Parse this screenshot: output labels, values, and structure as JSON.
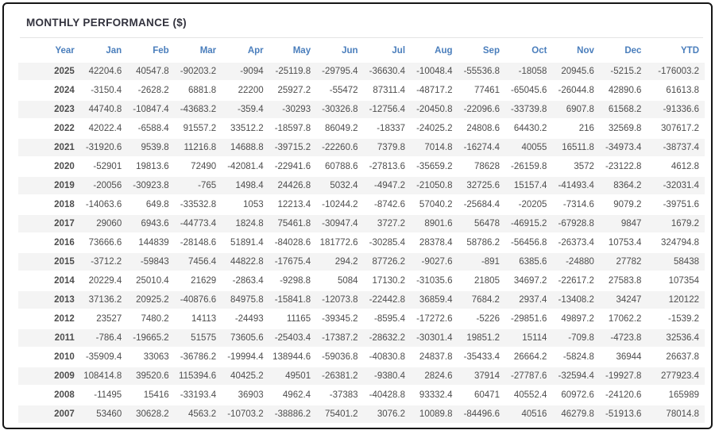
{
  "panel": {
    "title": "MONTHLY PERFORMANCE ($)"
  },
  "colors": {
    "header_text": "#4a7ebc",
    "positive_value": "#4d4d4d",
    "negative_value": "#f96b6b",
    "year_text": "#333333",
    "alt_row_bg": "#f4f4f4",
    "frame_border": "#161616",
    "title_text": "#33333e"
  },
  "chart_data": {
    "type": "table",
    "title": "MONTHLY PERFORMANCE ($)",
    "columns": [
      "Year",
      "Jan",
      "Feb",
      "Mar",
      "Apr",
      "May",
      "Jun",
      "Jul",
      "Aug",
      "Sep",
      "Oct",
      "Nov",
      "Dec",
      "YTD"
    ],
    "rows": [
      {
        "year": "2025",
        "values": [
          "42204.6",
          "40547.8",
          "-90203.2",
          "-9094",
          "-25119.8",
          "-29795.4",
          "-36630.4",
          "-10048.4",
          "-55536.8",
          "-18058",
          "20945.6",
          "-5215.2",
          "-176003.2"
        ]
      },
      {
        "year": "2024",
        "values": [
          "-3150.4",
          "-2628.2",
          "6881.8",
          "22200",
          "25927.2",
          "-55472",
          "87311.4",
          "-48717.2",
          "77461",
          "-65045.6",
          "-26044.8",
          "42890.6",
          "61613.8"
        ]
      },
      {
        "year": "2023",
        "values": [
          "44740.8",
          "-10847.4",
          "-43683.2",
          "-359.4",
          "-30293",
          "-30326.8",
          "-12756.4",
          "-20450.8",
          "-22096.6",
          "-33739.8",
          "6907.8",
          "61568.2",
          "-91336.6"
        ]
      },
      {
        "year": "2022",
        "values": [
          "42022.4",
          "-6588.4",
          "91557.2",
          "33512.2",
          "-18597.8",
          "86049.2",
          "-18337",
          "-24025.2",
          "24808.6",
          "64430.2",
          "216",
          "32569.8",
          "307617.2"
        ]
      },
      {
        "year": "2021",
        "values": [
          "-31920.6",
          "9539.8",
          "11216.8",
          "14688.8",
          "-39715.2",
          "-22260.6",
          "7379.8",
          "7014.8",
          "-16274.4",
          "40055",
          "16511.8",
          "-34973.4",
          "-38737.4"
        ]
      },
      {
        "year": "2020",
        "values": [
          "-52901",
          "19813.6",
          "72490",
          "-42081.4",
          "-22941.6",
          "60788.6",
          "-27813.6",
          "-35659.2",
          "78628",
          "-26159.8",
          "3572",
          "-23122.8",
          "4612.8"
        ]
      },
      {
        "year": "2019",
        "values": [
          "-20056",
          "-30923.8",
          "-765",
          "1498.4",
          "24426.8",
          "5032.4",
          "-4947.2",
          "-21050.8",
          "32725.6",
          "15157.4",
          "-41493.4",
          "8364.2",
          "-32031.4"
        ]
      },
      {
        "year": "2018",
        "values": [
          "-14063.6",
          "649.8",
          "-33532.8",
          "1053",
          "12213.4",
          "-10244.2",
          "-8742.6",
          "57040.2",
          "-25684.4",
          "-20205",
          "-7314.6",
          "9079.2",
          "-39751.6"
        ]
      },
      {
        "year": "2017",
        "values": [
          "29060",
          "6943.6",
          "-44773.4",
          "1824.8",
          "75461.8",
          "-30947.4",
          "3727.2",
          "8901.6",
          "56478",
          "-46915.2",
          "-67928.8",
          "9847",
          "1679.2"
        ]
      },
      {
        "year": "2016",
        "values": [
          "73666.6",
          "144839",
          "-28148.6",
          "51891.4",
          "-84028.6",
          "181772.6",
          "-30285.4",
          "28378.4",
          "58786.2",
          "-56456.8",
          "-26373.4",
          "10753.4",
          "324794.8"
        ]
      },
      {
        "year": "2015",
        "values": [
          "-3712.2",
          "-59843",
          "7456.4",
          "44822.8",
          "-17675.4",
          "294.2",
          "87726.2",
          "-9027.6",
          "-891",
          "6385.6",
          "-24880",
          "27782",
          "58438"
        ]
      },
      {
        "year": "2014",
        "values": [
          "20229.4",
          "25010.4",
          "21629",
          "-2863.4",
          "-9298.8",
          "5084",
          "17130.2",
          "-31035.6",
          "21805",
          "34697.2",
          "-22617.2",
          "27583.8",
          "107354"
        ]
      },
      {
        "year": "2013",
        "values": [
          "37136.2",
          "20925.2",
          "-40876.6",
          "84975.8",
          "-15841.8",
          "-12073.8",
          "-22442.8",
          "36859.4",
          "7684.2",
          "2937.4",
          "-13408.2",
          "34247",
          "120122"
        ]
      },
      {
        "year": "2012",
        "values": [
          "23527",
          "7480.2",
          "14113",
          "-24493",
          "11165",
          "-39345.2",
          "-8595.4",
          "-17272.6",
          "-5226",
          "-29851.6",
          "49897.2",
          "17062.2",
          "-1539.2"
        ]
      },
      {
        "year": "2011",
        "values": [
          "-786.4",
          "-19665.2",
          "51575",
          "73605.6",
          "-25403.4",
          "-17387.2",
          "-28632.2",
          "-30301.4",
          "19851.2",
          "15114",
          "-709.8",
          "-4723.8",
          "32536.4"
        ]
      },
      {
        "year": "2010",
        "values": [
          "-35909.4",
          "33063",
          "-36786.2",
          "-19994.4",
          "138944.6",
          "-59036.8",
          "-40830.8",
          "24837.8",
          "-35433.4",
          "26664.2",
          "-5824.8",
          "36944",
          "26637.8"
        ]
      },
      {
        "year": "2009",
        "values": [
          "108414.8",
          "39520.6",
          "115394.6",
          "40425.2",
          "49501",
          "-26381.2",
          "-9380.4",
          "2824.6",
          "37914",
          "-27787.6",
          "-32594.4",
          "-19927.8",
          "277923.4"
        ]
      },
      {
        "year": "2008",
        "values": [
          "-11495",
          "15416",
          "-33193.4",
          "36903",
          "4962.4",
          "-37383",
          "-40428.8",
          "93332.4",
          "60471",
          "40552.4",
          "60972.6",
          "-24120.6",
          "165989"
        ]
      },
      {
        "year": "2007",
        "values": [
          "53460",
          "30628.2",
          "4563.2",
          "-10703.2",
          "-38886.2",
          "75401.2",
          "3076.2",
          "10089.8",
          "-84496.6",
          "40516",
          "46279.8",
          "-51913.6",
          "78014.8"
        ]
      }
    ]
  }
}
